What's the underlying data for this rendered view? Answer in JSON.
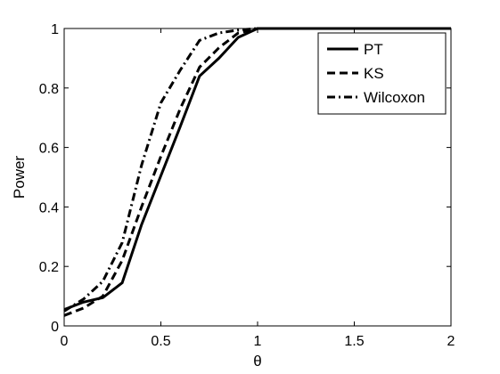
{
  "chart_data": {
    "type": "line",
    "title": "",
    "xlabel": "θ",
    "ylabel": "Power",
    "xlim": [
      0,
      2
    ],
    "ylim": [
      0,
      1
    ],
    "xticks": [
      "0",
      "0.5",
      "1",
      "1.5",
      "2"
    ],
    "yticks": [
      "0",
      "0.2",
      "0.4",
      "0.6",
      "0.8",
      "1"
    ],
    "grid": false,
    "legend_position": "top-right",
    "colors": {
      "line": "#000000",
      "background": "#ffffff",
      "frame": "#000000"
    },
    "series": [
      {
        "name": "PT",
        "style": "solid",
        "x": [
          0,
          0.1,
          0.2,
          0.3,
          0.4,
          0.5,
          0.6,
          0.7,
          0.8,
          0.9,
          1.0,
          1.1,
          1.2,
          1.3,
          1.4,
          1.5,
          1.6,
          1.7,
          1.8,
          1.9,
          2.0
        ],
        "y": [
          0.055,
          0.08,
          0.095,
          0.145,
          0.34,
          0.505,
          0.67,
          0.84,
          0.9,
          0.97,
          1.0,
          1.0,
          1.0,
          1.0,
          1.0,
          1.0,
          1.0,
          1.0,
          1.0,
          1.0,
          1.0
        ]
      },
      {
        "name": "KS",
        "style": "dashed",
        "x": [
          0,
          0.1,
          0.2,
          0.3,
          0.4,
          0.5,
          0.6,
          0.7,
          0.8,
          0.9,
          1.0,
          1.1,
          1.2,
          1.3,
          1.4,
          1.5,
          1.6,
          1.7,
          1.8,
          1.9,
          2.0
        ],
        "y": [
          0.035,
          0.06,
          0.1,
          0.22,
          0.4,
          0.57,
          0.73,
          0.87,
          0.935,
          0.985,
          1.0,
          1.0,
          1.0,
          1.0,
          1.0,
          1.0,
          1.0,
          1.0,
          1.0,
          1.0,
          1.0
        ]
      },
      {
        "name": "Wilcoxon",
        "style": "dashdot",
        "x": [
          0,
          0.1,
          0.2,
          0.3,
          0.4,
          0.5,
          0.6,
          0.7,
          0.8,
          0.9,
          1.0,
          1.1,
          1.2,
          1.3,
          1.4,
          1.5,
          1.6,
          1.7,
          1.8,
          1.9,
          2.0
        ],
        "y": [
          0.05,
          0.09,
          0.15,
          0.28,
          0.54,
          0.75,
          0.86,
          0.96,
          0.985,
          0.995,
          1.0,
          1.0,
          1.0,
          1.0,
          1.0,
          1.0,
          1.0,
          1.0,
          1.0,
          1.0,
          1.0
        ]
      }
    ]
  }
}
